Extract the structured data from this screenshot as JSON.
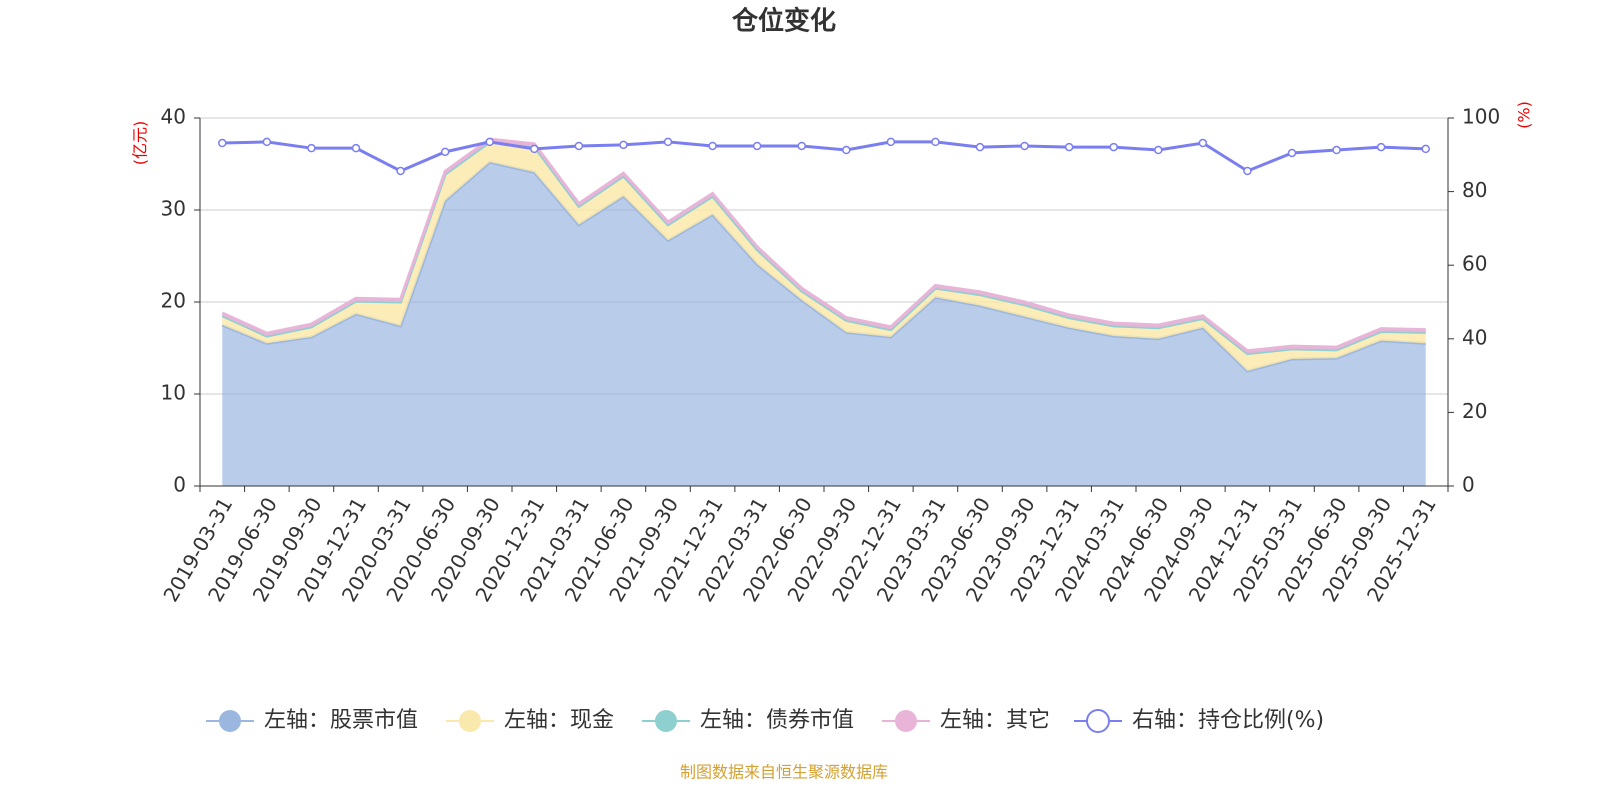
{
  "chart_data": {
    "type": "area",
    "title": "仓位变化",
    "y_label": "(亿元)",
    "y2_label": "(%)",
    "source": "制图数据来自恒生聚源数据库",
    "categories": [
      "2019-03-31",
      "2019-06-30",
      "2019-09-30",
      "2019-12-31",
      "2020-03-31",
      "2020-06-30",
      "2020-09-30",
      "2020-12-31",
      "2021-03-31",
      "2021-06-30",
      "2021-09-30",
      "2021-12-31",
      "2022-03-31",
      "2022-06-30",
      "2022-09-30",
      "2022-12-31",
      "2023-03-31",
      "2023-06-30",
      "2023-09-30",
      "2023-12-31",
      "2024-03-31",
      "2024-06-30",
      "2024-09-30",
      "2024-12-31",
      "2025-03-31",
      "2025-06-30",
      "2025-09-30",
      "2025-12-31"
    ],
    "series": [
      {
        "name": "左轴：股票市值",
        "color": "#9bb7e0",
        "type": "area",
        "values": [
          17.5,
          15.5,
          16.2,
          18.7,
          17.4,
          31.0,
          35.2,
          34.1,
          28.4,
          31.5,
          26.7,
          29.5,
          24.1,
          20.2,
          16.7,
          16.2,
          20.5,
          19.6,
          18.4,
          17.2,
          16.3,
          16.0,
          17.2,
          12.5,
          13.8,
          13.9,
          15.8,
          15.5
        ]
      },
      {
        "name": "左轴：现金",
        "color": "#fae9ac",
        "type": "area",
        "values": [
          1.0,
          0.8,
          1.1,
          1.4,
          2.6,
          2.9,
          2.2,
          2.8,
          2.0,
          2.2,
          1.7,
          2.0,
          1.6,
          1.0,
          1.3,
          0.8,
          1.0,
          1.2,
          1.3,
          1.1,
          1.1,
          1.2,
          1.0,
          1.9,
          1.1,
          0.9,
          1.0,
          1.2
        ]
      },
      {
        "name": "左轴：债券市值",
        "color": "#8ecfd0",
        "type": "area",
        "values": [
          0,
          0,
          0,
          0,
          0,
          0,
          0,
          0,
          0,
          0,
          0,
          0,
          0,
          0,
          0,
          0,
          0,
          0,
          0,
          0,
          0,
          0,
          0,
          0,
          0,
          0,
          0,
          0
        ]
      },
      {
        "name": "左轴：其它",
        "color": "#e8b4d8",
        "type": "area",
        "values": [
          0.3,
          0.3,
          0.3,
          0.3,
          0.3,
          0.3,
          0.3,
          0.3,
          0.3,
          0.3,
          0.3,
          0.3,
          0.3,
          0.3,
          0.3,
          0.3,
          0.3,
          0.3,
          0.3,
          0.3,
          0.3,
          0.3,
          0.3,
          0.3,
          0.3,
          0.3,
          0.3,
          0.3
        ]
      },
      {
        "name": "右轴：持仓比例(%)",
        "color": "#7a7ef0",
        "type": "line",
        "axis": "y2",
        "values": [
          93.2,
          93.5,
          91.8,
          91.8,
          85.6,
          90.8,
          93.5,
          91.6,
          92.4,
          92.7,
          93.5,
          92.4,
          92.4,
          92.4,
          91.3,
          93.5,
          93.5,
          92.1,
          92.4,
          92.1,
          92.1,
          91.3,
          93.2,
          85.6,
          90.5,
          91.3,
          92.1,
          91.6
        ]
      }
    ],
    "ylim": [
      0,
      40
    ],
    "yticks": [
      0,
      10,
      20,
      30,
      40
    ],
    "y2lim": [
      0,
      100
    ],
    "y2ticks": [
      0,
      20,
      40,
      60,
      80,
      100
    ],
    "grid": true,
    "legend": "bottom"
  }
}
